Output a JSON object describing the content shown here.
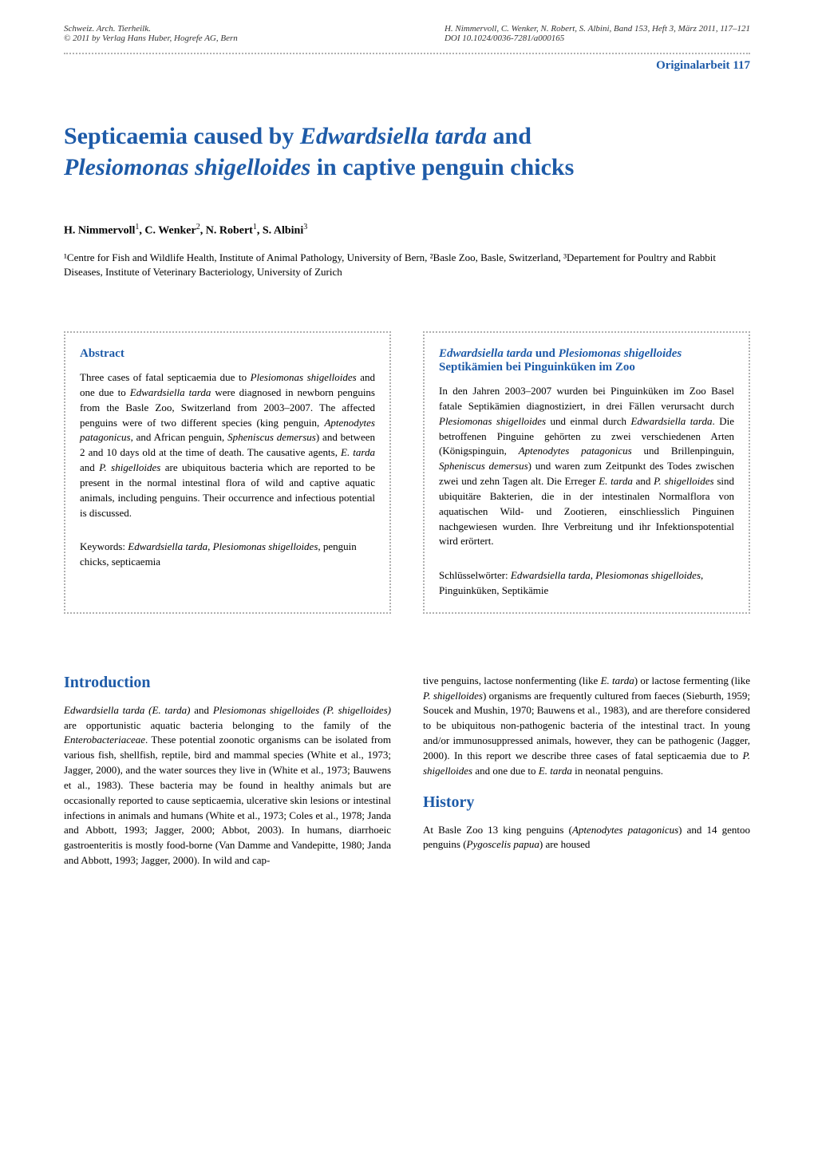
{
  "header": {
    "journal": "Schweiz. Arch. Tierheilk.",
    "copyright": "© 2011 by Verlag Hans Huber, Hogrefe AG, Bern",
    "citation": "H. Nimmervoll, C. Wenker, N. Robert, S. Albini, Band 153, Heft 3, März 2011, 117–121",
    "doi": "DOI 10.1024/0036-7281/a000165"
  },
  "section_label": "Originalarbeit",
  "page_number": "117",
  "title_part1": "Septicaemia caused by ",
  "title_italic1": "Edwardsiella tarda",
  "title_part2": " and ",
  "title_italic2": "Plesiomonas shigelloides",
  "title_part3": " in captive penguin chicks",
  "authors": "H. Nimmervoll¹, C. Wenker², N. Robert¹, S. Albini³",
  "affiliations": "¹Centre for Fish and Wildlife Health, Institute of Animal Pathology, University of Bern, ²Basle Zoo, Basle, Switzerland, ³Departement for Poultry and Rabbit Diseases, Institute of Veterinary Bacteriology, University of Zurich",
  "abstract_en": {
    "heading": "Abstract",
    "text": "Three cases of fatal septicaemia due to Plesiomonas shigelloides and one due to Edwardsiella tarda were diagnosed in newborn penguins from the Basle Zoo, Switzerland from 2003–2007. The affected penguins were of two different species (king penguin, Aptenodytes patagonicus, and African penguin, Spheniscus demersus) and between 2 and 10 days old at the time of death. The causative agents, E. tarda and P. shigelloides are ubiquitous bacteria which are reported to be present in the normal intestinal flora of wild and captive aquatic animals, including penguins. Their occurrence and infectious potential is discussed.",
    "keywords_label": "Keywords: ",
    "keywords": "Edwardsiella tarda, Plesiomonas shigelloides, penguin chicks, septicaemia"
  },
  "abstract_de": {
    "heading_italic1": "Edwardsiella tarda",
    "heading_part1": " und ",
    "heading_italic2": "Plesiomonas shigelloides",
    "heading_part2": " Septikämien bei Pinguinküken im Zoo",
    "text": "In den Jahren 2003–2007 wurden bei Pinguinküken im Zoo Basel fatale Septikämien diagnostiziert, in drei Fällen verursacht durch Plesiomonas shigelloides und einmal durch Edwardsiella tarda. Die betroffenen Pinguine gehörten zu zwei verschiedenen Arten (Königspinguin, Aptenodytes patagonicus und Brillenpinguin, Spheniscus demersus) und waren zum Zeitpunkt des Todes zwischen zwei und zehn Tagen alt. Die Erreger E. tarda and P. shigelloides sind ubiquitäre Bakterien, die in der intestinalen Normalflora von aquatischen Wild- und Zootieren, einschliesslich Pinguinen nachgewiesen wurden. Ihre Verbreitung und ihr Infektionspotential wird erörtert.",
    "keywords_label": "Schlüsselwörter: ",
    "keywords": "Edwardsiella tarda, Plesiomonas shigelloides, Pinguinküken, Septikämie"
  },
  "introduction": {
    "heading": "Introduction",
    "text_left": "Edwardsiella tarda (E. tarda) and Plesiomonas shigelloides (P. shigelloides) are opportunistic aquatic bacteria belonging to the family of the Enterobacteriaceae. These potential zoonotic organisms can be isolated from various fish, shellfish, reptile, bird and mammal species (White et al., 1973; Jagger, 2000), and the water sources they live in (White et al., 1973; Bauwens et al., 1983). These bacteria may be found in healthy animals but are occasionally reported to cause septicaemia, ulcerative skin lesions or intestinal infections in animals and humans (White et al., 1973; Coles et al., 1978; Janda and Abbott, 1993; Jagger, 2000; Abbot, 2003). In humans, diarrhoeic gastroenteritis is mostly food-borne (Van Damme and Vandepitte, 1980; Janda and Abbott, 1993; Jagger, 2000). In wild and cap-",
    "text_right": "tive penguins, lactose nonfermenting (like E. tarda) or lactose fermenting (like P. shigelloides) organisms are frequently cultured from faeces (Sieburth, 1959; Soucek and Mushin, 1970; Bauwens et al., 1983), and are therefore considered to be ubiquitous non-pathogenic bacteria of the intestinal tract. In young and/or immunosuppressed animals, however, they can be pathogenic (Jagger, 2000). In this report we describe three cases of fatal septicaemia due to P. shigelloides and one due to E. tarda in neonatal penguins."
  },
  "history": {
    "heading": "History",
    "text": "At Basle Zoo 13 king penguins (Aptenodytes patagonicus) and 14 gentoo penguins (Pygoscelis papua) are housed"
  },
  "colors": {
    "blue": "#1e5ba8",
    "dotted": "#b0b0b0",
    "text": "#000000",
    "header_text": "#333333",
    "background": "#ffffff"
  },
  "typography": {
    "title_size": 30,
    "heading_size": 20,
    "abstract_heading_size": 15,
    "body_size": 13,
    "header_size": 11
  }
}
